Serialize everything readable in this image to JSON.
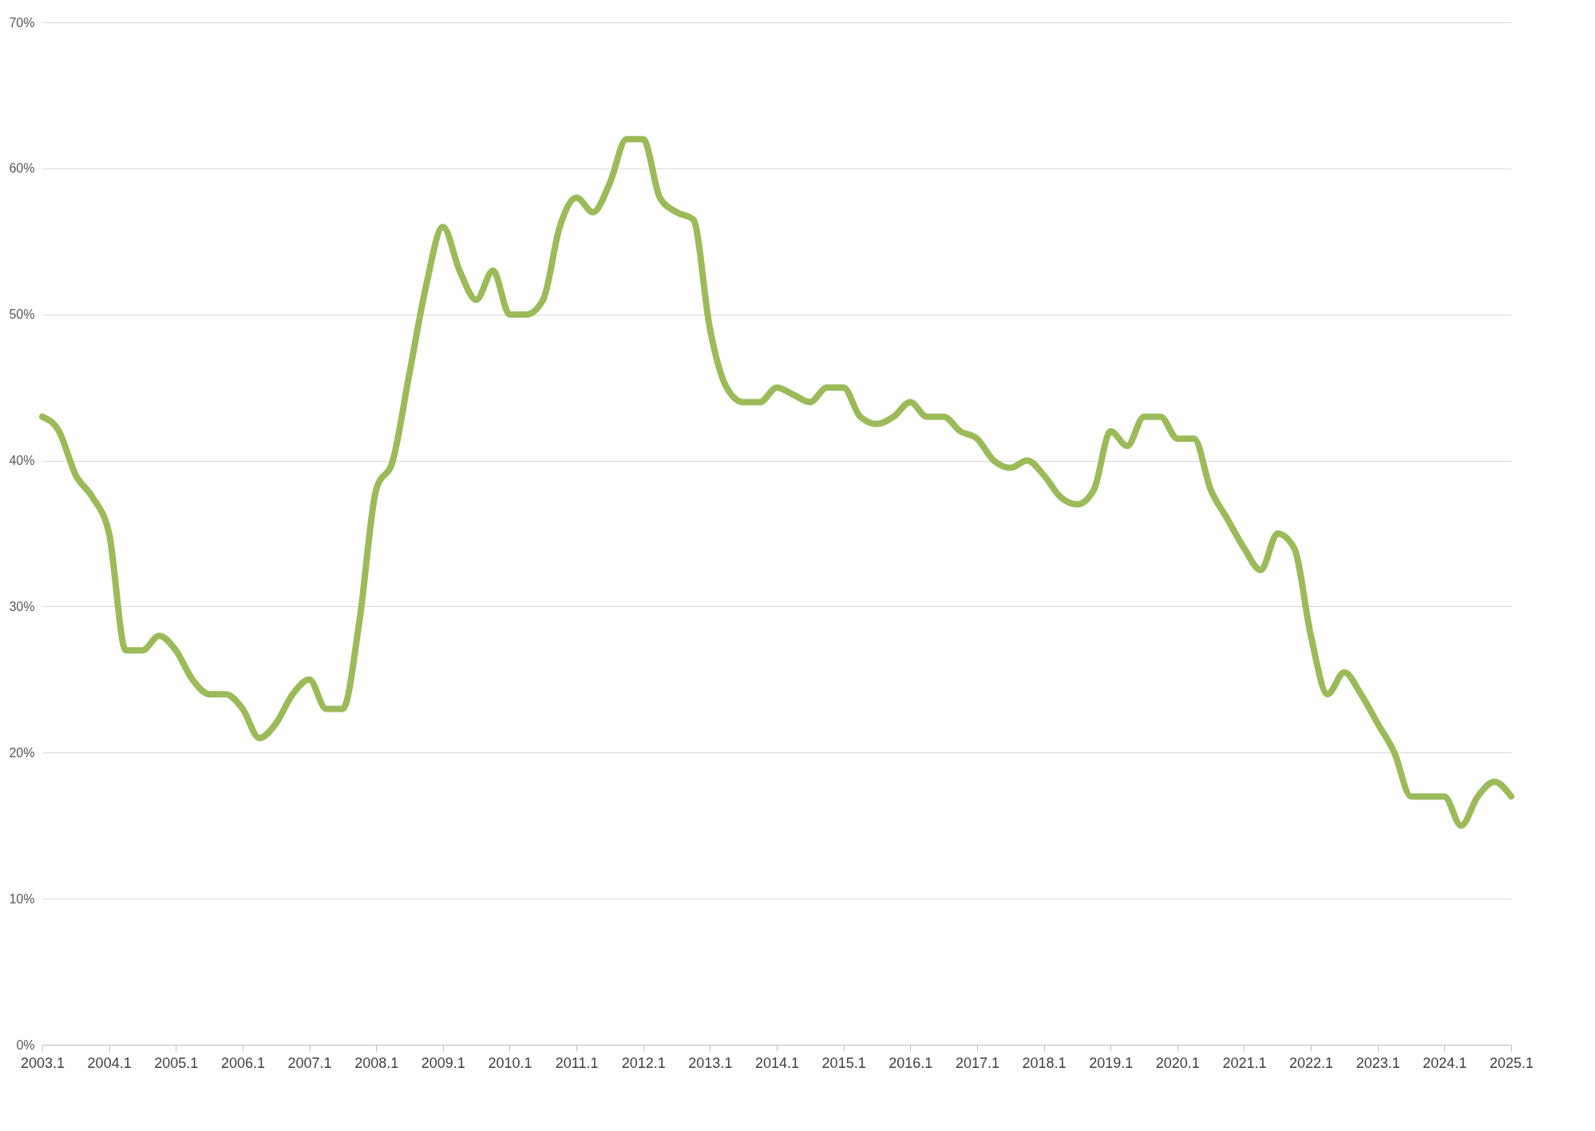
{
  "chart_data": {
    "type": "line",
    "line_style": "solid",
    "marker": "none",
    "grid": "y",
    "legend": false,
    "categories": [
      "2003.1",
      null,
      null,
      null,
      "2004.1",
      null,
      null,
      null,
      "2005.1",
      null,
      null,
      null,
      "2006.1",
      null,
      null,
      null,
      "2007.1",
      null,
      null,
      null,
      "2008.1",
      null,
      null,
      null,
      "2009.1",
      null,
      null,
      null,
      "2010.1",
      null,
      null,
      null,
      "2011.1",
      null,
      null,
      null,
      "2012.1",
      null,
      null,
      null,
      "2013.1",
      null,
      null,
      null,
      "2014.1",
      null,
      null,
      null,
      "2015.1",
      null,
      null,
      null,
      "2016.1",
      null,
      null,
      null,
      "2017.1",
      null,
      null,
      null,
      "2018.1",
      null,
      null,
      null,
      "2019.1",
      null,
      null,
      null,
      "2020.1",
      null,
      null,
      null,
      "2021.1",
      null,
      null,
      null,
      "2022.1",
      null,
      null,
      null,
      "2023.1",
      null,
      null,
      null,
      "2024.1",
      null,
      null,
      null,
      "2025.1"
    ],
    "series": [
      {
        "color": "#9bbb59",
        "values": [
          43,
          42,
          39,
          37.5,
          35,
          27,
          27,
          28,
          27,
          25,
          24,
          24,
          23,
          21,
          22,
          24,
          25,
          23,
          23,
          29,
          38,
          40,
          46,
          52,
          56,
          53,
          51,
          53,
          50,
          50,
          51,
          56,
          58,
          57,
          59,
          62,
          62,
          58,
          57,
          56.5,
          49,
          45,
          44,
          44,
          45,
          44.5,
          44,
          45,
          45,
          43,
          42.5,
          43,
          44,
          43,
          43,
          42,
          41.5,
          40,
          39.5,
          40,
          39,
          37.5,
          37,
          38,
          42,
          41,
          43,
          43,
          41.5,
          41.5,
          38,
          36,
          34,
          32.5,
          35,
          34,
          28,
          24,
          25.5,
          24,
          22,
          20,
          17,
          17,
          17,
          15,
          17,
          18,
          17
        ]
      }
    ],
    "ylim": [
      0,
      70
    ],
    "yticks": [
      {
        "value": 0,
        "label": "0%"
      },
      {
        "value": 10,
        "label": "10%"
      },
      {
        "value": 20,
        "label": "20%"
      },
      {
        "value": 30,
        "label": "30%"
      },
      {
        "value": 40,
        "label": "40%"
      },
      {
        "value": 50,
        "label": "50%"
      },
      {
        "value": 60,
        "label": "60%"
      },
      {
        "value": 70,
        "label": "70%"
      }
    ]
  }
}
